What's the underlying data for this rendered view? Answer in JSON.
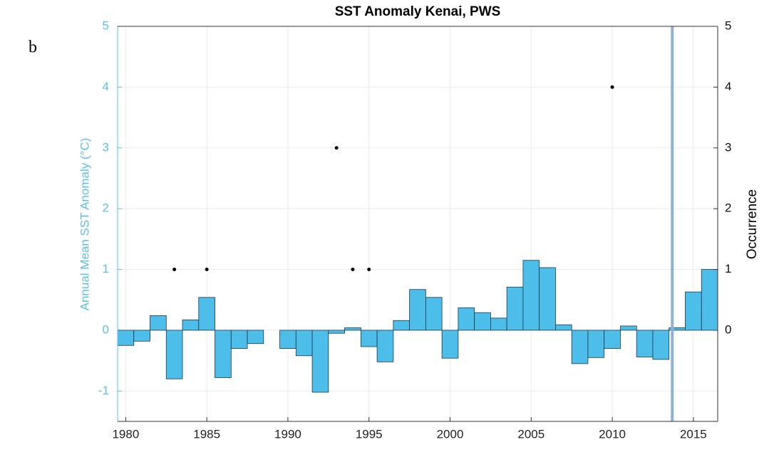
{
  "chart_data": {
    "type": "bar",
    "panel_label": "b",
    "title": "SST Anomaly Kenai, PWS",
    "y_label": "Annual Mean SST Anomaly (°C)",
    "y2_label": "Occurrence",
    "x": [
      1980,
      1981,
      1982,
      1983,
      1984,
      1985,
      1986,
      1987,
      1988,
      1989,
      1990,
      1991,
      1992,
      1993,
      1994,
      1995,
      1996,
      1997,
      1998,
      1999,
      2000,
      2001,
      2002,
      2003,
      2004,
      2005,
      2006,
      2007,
      2008,
      2009,
      2010,
      2011,
      2012,
      2013,
      2014,
      2015,
      2016
    ],
    "values": [
      -0.25,
      -0.18,
      0.24,
      -0.8,
      0.17,
      0.54,
      -0.78,
      -0.3,
      -0.22,
      null,
      -0.3,
      -0.42,
      -1.02,
      -0.05,
      0.04,
      -0.27,
      -0.52,
      0.16,
      0.67,
      0.54,
      -0.46,
      0.37,
      0.29,
      0.2,
      0.71,
      1.15,
      1.03,
      0.09,
      -0.55,
      -0.45,
      -0.3,
      0.07,
      -0.44,
      -0.48,
      0.04,
      0.63,
      1.0
    ],
    "color": "#4dbde9",
    "occurrence": {
      "x": [
        1983,
        1985,
        1993,
        1994,
        1995,
        2010
      ],
      "values": [
        1,
        1,
        3,
        1,
        1,
        4
      ],
      "axis": "y2",
      "color": "#000000"
    },
    "vline": {
      "x": 2013.7,
      "color": "#8fb0d8"
    },
    "xlim": [
      1979.5,
      2016.5
    ],
    "xticks": [
      1980,
      1985,
      1990,
      1995,
      2000,
      2005,
      2010,
      2015
    ],
    "ylim": [
      -1.5,
      5
    ],
    "yticks": [
      -1,
      0,
      1,
      2,
      3,
      4,
      5
    ],
    "y2lim": [
      -1.5,
      5
    ],
    "y2ticks": [
      0,
      1,
      2,
      3,
      4,
      5
    ],
    "y_color": "#5bc0eb",
    "grid": true
  }
}
